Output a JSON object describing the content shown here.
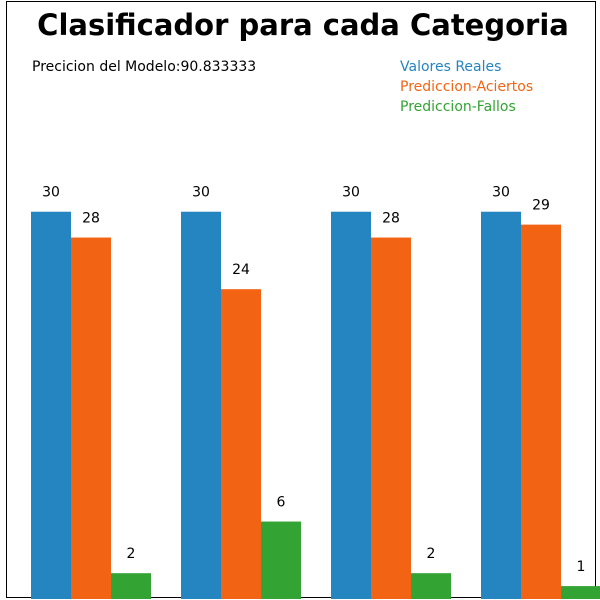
{
  "chart_data": {
    "type": "bar",
    "title": "Clasificador para cada Categoria",
    "subtitle": "Precicion del Modelo:90.833333",
    "categories": [
      "",
      "",
      "",
      ""
    ],
    "series": [
      {
        "name": "Valores Reales",
        "color": "#2485c0",
        "values": [
          30,
          30,
          30,
          30
        ]
      },
      {
        "name": "Prediccion-Aciertos",
        "color": "#f26414",
        "values": [
          28,
          24,
          28,
          29
        ]
      },
      {
        "name": "Prediccion-Fallos",
        "color": "#33a333",
        "values": [
          2,
          6,
          2,
          1
        ]
      }
    ],
    "ylim": [
      0,
      46.4
    ],
    "legend_position": "top-right",
    "grid": false
  }
}
